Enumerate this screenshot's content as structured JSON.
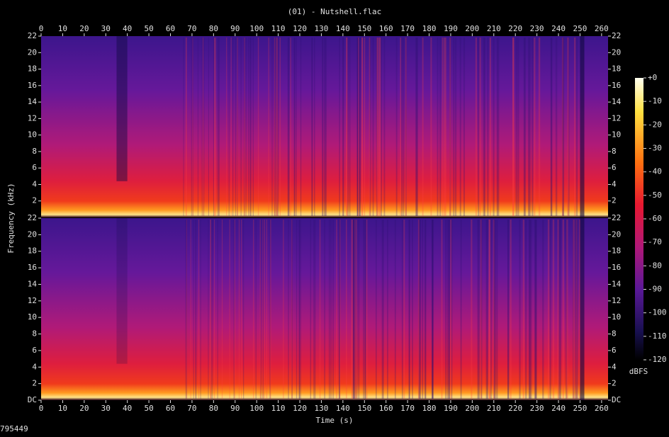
{
  "chart_data": {
    "type": "spectrogram",
    "title": "(01) - Nutshell.flac",
    "x_label": "Time (s)",
    "y_label": "Frequency (kHz)",
    "xlim": [
      0,
      263
    ],
    "xticks": [
      0,
      10,
      20,
      30,
      40,
      50,
      60,
      70,
      80,
      90,
      100,
      110,
      120,
      130,
      140,
      150,
      160,
      170,
      180,
      190,
      200,
      210,
      220,
      230,
      240,
      250,
      260
    ],
    "panels": [
      {
        "ylim": [
          0,
          22
        ],
        "yticks": [
          2,
          4,
          6,
          8,
          10,
          12,
          14,
          16,
          18,
          20,
          22
        ]
      },
      {
        "ylim": [
          0,
          22
        ],
        "yticks": [
          {
            "value": 0,
            "label": "DC"
          },
          2,
          4,
          6,
          8,
          10,
          12,
          14,
          16,
          18,
          20,
          22
        ]
      }
    ],
    "colorbar": {
      "label": "dBFS",
      "lim": [
        -120,
        0
      ],
      "ticks": [
        {
          "value": 0,
          "label": "+0"
        },
        -10,
        -20,
        -30,
        -40,
        -50,
        -60,
        -70,
        -80,
        -90,
        -100,
        -110,
        -120
      ]
    }
  },
  "footer": "795449"
}
